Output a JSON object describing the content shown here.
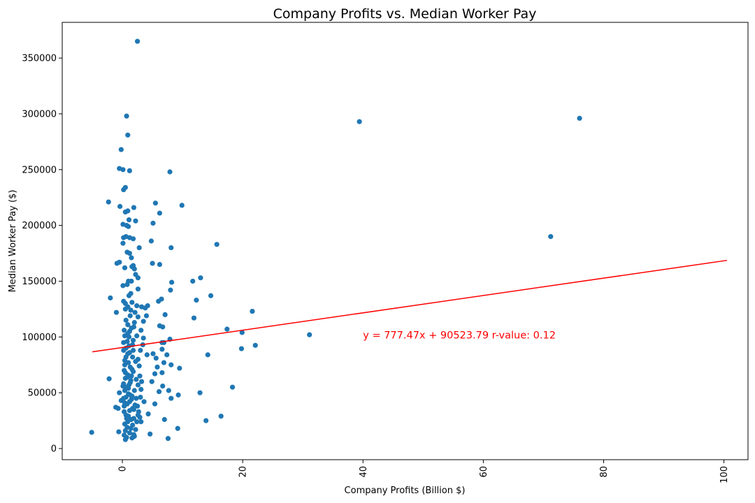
{
  "chart_data": {
    "type": "scatter",
    "title": "Company Profits vs. Median Worker Pay",
    "xlabel": "Company Profits (Billion $)",
    "ylabel": "Median Worker Pay ($)",
    "xlim": [
      -10,
      104
    ],
    "ylim": [
      -10000,
      382000
    ],
    "xticks": [
      0,
      20,
      40,
      60,
      80,
      100
    ],
    "yticks": [
      0,
      50000,
      100000,
      150000,
      200000,
      250000,
      300000,
      350000
    ],
    "grid": false,
    "point_color": "#1f77b4",
    "line_color": "#ff0000",
    "regression": {
      "slope": 777.47,
      "intercept": 90523.79,
      "x_range": [
        -5,
        100.5
      ]
    },
    "annotation": {
      "text": "y = 777.47x + 90523.79   r-value: 0.12",
      "x": 40,
      "y": 100000
    },
    "points": [
      [
        2.5,
        365000
      ],
      [
        0.7,
        298000
      ],
      [
        0.9,
        281000
      ],
      [
        -0.2,
        268000
      ],
      [
        0.1,
        250000
      ],
      [
        1.2,
        249000
      ],
      [
        -0.5,
        251000
      ],
      [
        0.2,
        232000
      ],
      [
        0.5,
        234000
      ],
      [
        7.9,
        248000
      ],
      [
        -2.3,
        221000
      ],
      [
        9.9,
        218000
      ],
      [
        5.5,
        220000
      ],
      [
        -0.4,
        217000
      ],
      [
        1.9,
        216000
      ],
      [
        0.5,
        212000
      ],
      [
        0.9,
        213000
      ],
      [
        6.2,
        211000
      ],
      [
        2.2,
        204000
      ],
      [
        1.1,
        205000
      ],
      [
        0.1,
        201000
      ],
      [
        5.1,
        202000
      ],
      [
        0.7,
        200000
      ],
      [
        1.0,
        199000
      ],
      [
        0.2,
        189000
      ],
      [
        0.6,
        190000
      ],
      [
        1.2,
        189000
      ],
      [
        1.8,
        188000
      ],
      [
        0.1,
        184000
      ],
      [
        4.8,
        186000
      ],
      [
        15.7,
        183000
      ],
      [
        2.8,
        180000
      ],
      [
        8.1,
        180000
      ],
      [
        0.8,
        176000
      ],
      [
        1.2,
        175000
      ],
      [
        71.2,
        190000
      ],
      [
        39.4,
        293000
      ],
      [
        76.0,
        296000
      ],
      [
        -0.5,
        167000
      ],
      [
        -0.9,
        166000
      ],
      [
        1.5,
        171000
      ],
      [
        5.0,
        166000
      ],
      [
        6.2,
        165000
      ],
      [
        1.6,
        163000
      ],
      [
        2.0,
        161000
      ],
      [
        0.4,
        162000
      ],
      [
        1.8,
        164000
      ],
      [
        2.6,
        153000
      ],
      [
        1.0,
        150000
      ],
      [
        0.8,
        147000
      ],
      [
        11.7,
        150000
      ],
      [
        13.0,
        153000
      ],
      [
        8.2,
        149000
      ],
      [
        2.2,
        156000
      ],
      [
        1.5,
        150000
      ],
      [
        0.1,
        146000
      ],
      [
        2.6,
        143000
      ],
      [
        8.0,
        142000
      ],
      [
        14.7,
        137000
      ],
      [
        12.3,
        133000
      ],
      [
        -2.0,
        135000
      ],
      [
        0.2,
        132000
      ],
      [
        1.1,
        137000
      ],
      [
        1.6,
        131000
      ],
      [
        6.0,
        132000
      ],
      [
        6.5,
        134000
      ],
      [
        2.4,
        128000
      ],
      [
        3.2,
        127000
      ],
      [
        3.8,
        126000
      ],
      [
        4.2,
        128000
      ],
      [
        0.5,
        125000
      ],
      [
        1.4,
        124000
      ],
      [
        2.1,
        122000
      ],
      [
        -1.0,
        122000
      ],
      [
        21.6,
        123000
      ],
      [
        2.6,
        118000
      ],
      [
        4.0,
        119000
      ],
      [
        7.1,
        120000
      ],
      [
        11.9,
        117000
      ],
      [
        3.5,
        114000
      ],
      [
        0.9,
        111000
      ],
      [
        1.9,
        109000
      ],
      [
        6.2,
        110000
      ],
      [
        6.7,
        109000
      ],
      [
        17.4,
        107000
      ],
      [
        0.3,
        106000
      ],
      [
        1.2,
        105000
      ],
      [
        3.1,
        106000
      ],
      [
        19.9,
        104000
      ],
      [
        31.1,
        102000
      ],
      [
        0.4,
        101000
      ],
      [
        1.1,
        100000
      ],
      [
        3.5,
        99000
      ],
      [
        7.9,
        98000
      ],
      [
        0.8,
        96000
      ],
      [
        6.6,
        95000
      ],
      [
        6.9,
        95000
      ],
      [
        1.7,
        93000
      ],
      [
        3.4,
        93000
      ],
      [
        22.1,
        92500
      ],
      [
        19.8,
        89500
      ],
      [
        6.6,
        89000
      ],
      [
        0.2,
        88000
      ],
      [
        1.2,
        86000
      ],
      [
        5.1,
        85000
      ],
      [
        7.4,
        84000
      ],
      [
        14.2,
        84000
      ],
      [
        4.1,
        84000
      ],
      [
        0.6,
        82000
      ],
      [
        2.6,
        80000
      ],
      [
        5.6,
        81000
      ],
      [
        6.9,
        77000
      ],
      [
        8.1,
        75000
      ],
      [
        9.5,
        72000
      ],
      [
        0.4,
        75000
      ],
      [
        1.3,
        73000
      ],
      [
        5.8,
        73000
      ],
      [
        0.3,
        70000
      ],
      [
        1.8,
        69000
      ],
      [
        6.6,
        68000
      ],
      [
        0.9,
        66000
      ],
      [
        2.9,
        65000
      ],
      [
        5.4,
        67000
      ],
      [
        0.5,
        63000
      ],
      [
        -2.2,
        62500
      ],
      [
        1.4,
        61000
      ],
      [
        4.9,
        60000
      ],
      [
        0.2,
        58000
      ],
      [
        2.6,
        57000
      ],
      [
        6.7,
        56000
      ],
      [
        18.3,
        55000
      ],
      [
        1.0,
        54000
      ],
      [
        0.4,
        52000
      ],
      [
        3.1,
        53000
      ],
      [
        6.1,
        51000
      ],
      [
        7.7,
        52000
      ],
      [
        -0.5,
        50000
      ],
      [
        12.9,
        50000
      ],
      [
        9.3,
        48000
      ],
      [
        1.6,
        47000
      ],
      [
        0.6,
        46000
      ],
      [
        2.3,
        45000
      ],
      [
        8.1,
        45000
      ],
      [
        -0.2,
        43000
      ],
      [
        1.2,
        42000
      ],
      [
        3.6,
        42000
      ],
      [
        5.4,
        40000
      ],
      [
        0.8,
        40000
      ],
      [
        2.5,
        38000
      ],
      [
        -1.1,
        37000
      ],
      [
        -0.7,
        36000
      ],
      [
        1.9,
        35000
      ],
      [
        0.3,
        33000
      ],
      [
        4.3,
        31000
      ],
      [
        2.6,
        30000
      ],
      [
        1.0,
        29000
      ],
      [
        16.4,
        29000
      ],
      [
        2.9,
        28000
      ],
      [
        0.7,
        27000
      ],
      [
        1.5,
        26000
      ],
      [
        7.0,
        26000
      ],
      [
        13.9,
        25000
      ],
      [
        2.4,
        24000
      ],
      [
        0.4,
        22000
      ],
      [
        1.7,
        21000
      ],
      [
        0.8,
        19000
      ],
      [
        9.2,
        18000
      ],
      [
        2.2,
        17000
      ],
      [
        0.5,
        16000
      ],
      [
        -0.6,
        15000
      ],
      [
        -5.1,
        14500
      ],
      [
        1.2,
        14000
      ],
      [
        4.6,
        13000
      ],
      [
        0.3,
        12000
      ],
      [
        2.0,
        11000
      ],
      [
        0.7,
        10000
      ],
      [
        1.6,
        9500
      ],
      [
        7.6,
        9000
      ],
      [
        0.5,
        8000
      ],
      [
        1.9,
        12500
      ],
      [
        0.2,
        95000
      ],
      [
        1.1,
        92000
      ],
      [
        0.6,
        90000
      ],
      [
        1.8,
        88000
      ],
      [
        0.4,
        79000
      ],
      [
        1.0,
        77000
      ],
      [
        1.6,
        71000
      ],
      [
        0.8,
        64000
      ],
      [
        1.3,
        59000
      ],
      [
        0.1,
        56000
      ],
      [
        1.0,
        49000
      ],
      [
        1.5,
        44000
      ],
      [
        0.3,
        38000
      ],
      [
        1.2,
        34000
      ],
      [
        0.6,
        30000
      ],
      [
        1.9,
        27000
      ],
      [
        0.9,
        24000
      ],
      [
        1.4,
        18000
      ],
      [
        0.2,
        45000
      ],
      [
        0.9,
        85000
      ],
      [
        1.7,
        82000
      ],
      [
        2.2,
        78000
      ],
      [
        0.5,
        68000
      ],
      [
        1.5,
        65000
      ],
      [
        2.3,
        62000
      ],
      [
        1.1,
        57000
      ],
      [
        0.7,
        55000
      ],
      [
        2.0,
        52000
      ],
      [
        1.3,
        48000
      ],
      [
        0.4,
        41000
      ],
      [
        2.1,
        39000
      ],
      [
        1.7,
        36000
      ],
      [
        0.9,
        103000
      ],
      [
        1.5,
        108000
      ],
      [
        0.6,
        115000
      ],
      [
        1.3,
        119000
      ],
      [
        2.0,
        113000
      ],
      [
        0.5,
        130000
      ],
      [
        1.4,
        139000
      ],
      [
        0.9,
        127000
      ],
      [
        2.4,
        101000
      ],
      [
        1.8,
        97000
      ],
      [
        3.0,
        88000
      ],
      [
        2.8,
        74000
      ],
      [
        3.2,
        60000
      ],
      [
        3.0,
        46000
      ],
      [
        2.7,
        33000
      ],
      [
        3.1,
        24000
      ]
    ]
  }
}
